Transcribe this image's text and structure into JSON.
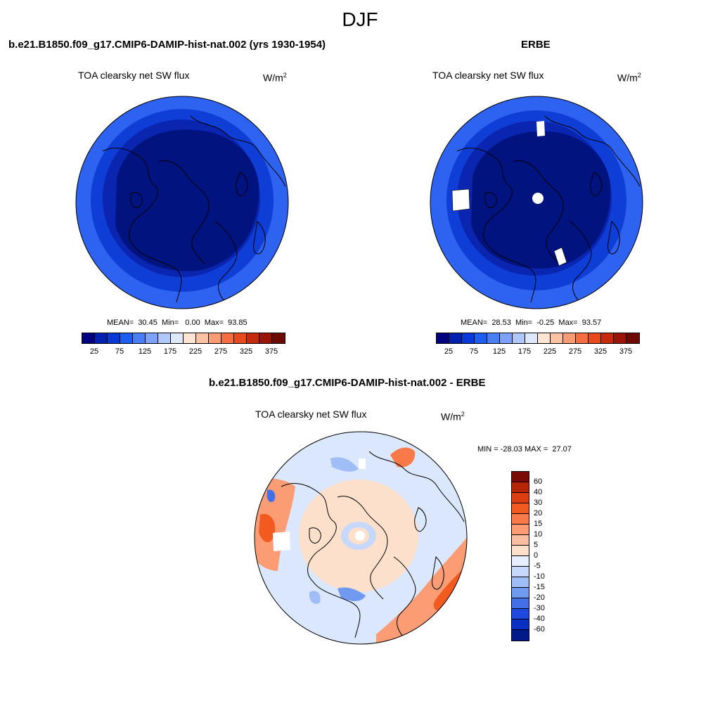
{
  "title": "DJF",
  "panels": {
    "model": {
      "title": "b.e21.B1850.f09_g17.CMIP6-DAMIP-hist-nat.002 (yrs 1930-1954)",
      "variable": "TOA clearsky net SW flux",
      "units": "W/m",
      "units_sup": "2",
      "stats": "MEAN=  30.45  Min=   0.00  Max=  93.85"
    },
    "obs": {
      "title": "ERBE",
      "variable": "TOA clearsky net SW flux",
      "units": "W/m",
      "units_sup": "2",
      "stats": "MEAN=  28.53  Min=  -0.25  Max=  93.57"
    },
    "diff": {
      "title": "b.e21.B1850.f09_g17.CMIP6-DAMIP-hist-nat.002 - ERBE",
      "variable": "TOA clearsky net SW flux",
      "units": "W/m",
      "units_sup": "2",
      "stats": "MIN = -28.03 MAX =  27.07"
    }
  },
  "colorbar_abs": {
    "labels": [
      "25",
      "75",
      "125",
      "175",
      "225",
      "275",
      "325",
      "375"
    ],
    "colors": [
      "#000080",
      "#0020b0",
      "#0838d8",
      "#1f5cf0",
      "#4a7ff4",
      "#7ea2f7",
      "#b0c8fa",
      "#dde8fc",
      "#fde5d2",
      "#fbc3a4",
      "#f89c74",
      "#f46e42",
      "#e84a1e",
      "#c82a10",
      "#9a1506",
      "#6e0a02"
    ]
  },
  "colorbar_diff": {
    "labels": [
      "60",
      "40",
      "30",
      "20",
      "15",
      "10",
      "5",
      "0",
      "-5",
      "-10",
      "-15",
      "-20",
      "-30",
      "-40",
      "-60"
    ],
    "colors": [
      "#7a0b03",
      "#b72508",
      "#dd3e10",
      "#f35a1f",
      "#f97a48",
      "#fb9c74",
      "#fcbc9f",
      "#fde0cc",
      "#e6efff",
      "#c6d8fb",
      "#9fbdf6",
      "#7099f0",
      "#4370e8",
      "#1f48e0",
      "#0a2fc5",
      "#001a8c"
    ]
  },
  "field_colors": {
    "abs_outer": "#2e62f0",
    "abs_mid": "#0f3ed6",
    "abs_inner": "#0a25b0",
    "abs_core": "#00137f",
    "diff_bg": "#dbe7fc"
  }
}
